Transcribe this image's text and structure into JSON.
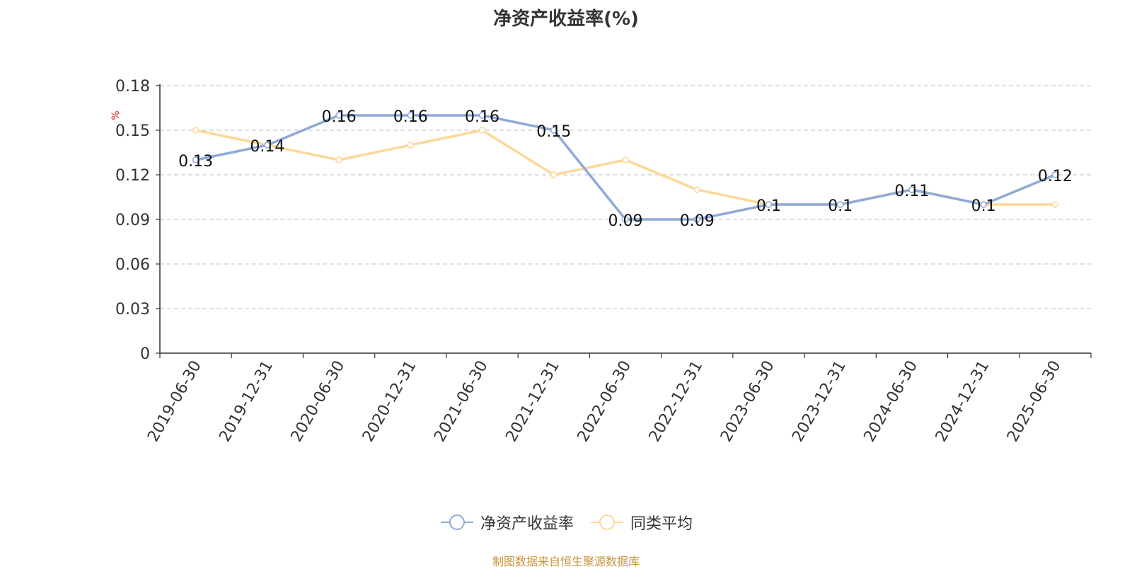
{
  "chart_data": {
    "type": "line",
    "title": "净资产收益率(%)",
    "ylabel": "%",
    "xlabel": "",
    "categories": [
      "2019-06-30",
      "2019-12-31",
      "2020-06-30",
      "2020-12-31",
      "2021-06-30",
      "2021-12-31",
      "2022-06-30",
      "2022-12-31",
      "2023-06-30",
      "2023-12-31",
      "2024-06-30",
      "2024-12-31",
      "2025-06-30"
    ],
    "series": [
      {
        "name": "净资产收益率",
        "color": "#8eaad6",
        "show_labels": true,
        "values": [
          0.13,
          0.14,
          0.16,
          0.16,
          0.16,
          0.15,
          0.09,
          0.09,
          0.1,
          0.1,
          0.11,
          0.1,
          0.12
        ],
        "labels": [
          "0.13",
          "0.14",
          "0.16",
          "0.16",
          "0.16",
          "0.15",
          "0.09",
          "0.09",
          "0.1",
          "0.1",
          "0.11",
          "0.1",
          "0.12"
        ]
      },
      {
        "name": "同类平均",
        "color": "#fdd89a",
        "show_labels": false,
        "values": [
          0.15,
          0.14,
          0.13,
          0.14,
          0.15,
          0.12,
          0.13,
          0.11,
          0.1,
          0.1,
          0.11,
          0.1,
          0.1
        ]
      }
    ],
    "ylim": [
      0,
      0.18
    ],
    "yticks": [
      "0",
      "0.03",
      "0.06",
      "0.09",
      "0.12",
      "0.15",
      "0.18"
    ],
    "ytick_values": [
      0,
      0.03,
      0.06,
      0.09,
      0.12,
      0.15,
      0.18
    ],
    "grid": true,
    "legend_position": "bottom-center"
  },
  "source_note": "制图数据来自恒生聚源数据库"
}
